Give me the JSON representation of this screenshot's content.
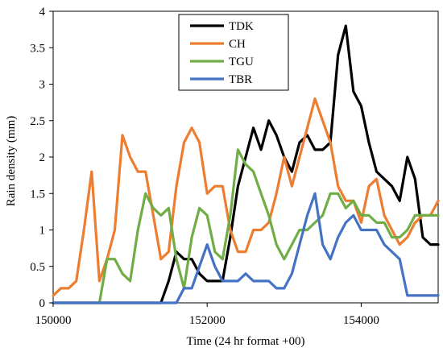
{
  "chart_data": {
    "type": "line",
    "title": "",
    "xlabel": "Time (24 hr format +00)",
    "ylabel": "Rain  density (mm)",
    "xlim": [
      150000,
      155000
    ],
    "ylim": [
      0,
      4
    ],
    "xticks": [
      150000,
      152000,
      154000
    ],
    "xtick_labels": [
      "150000",
      "152000",
      "154000"
    ],
    "yticks": [
      0,
      0.5,
      1,
      1.5,
      2,
      2.5,
      3,
      3.5,
      4
    ],
    "ytick_labels": [
      "0",
      "0.5",
      "1",
      "1.5",
      "2",
      "2.5",
      "3",
      "3.5",
      "4"
    ],
    "grid": false,
    "legend_position": "top-center",
    "series": [
      {
        "name": "TDK",
        "color": "#000000",
        "points": [
          [
            150000,
            0
          ],
          [
            151300,
            0
          ],
          [
            151400,
            0
          ],
          [
            151500,
            0.3
          ],
          [
            151600,
            0.7
          ],
          [
            151700,
            0.6
          ],
          [
            151800,
            0.6
          ],
          [
            151900,
            0.4
          ],
          [
            152000,
            0.3
          ],
          [
            152100,
            0.3
          ],
          [
            152200,
            0.3
          ],
          [
            152300,
            0.9
          ],
          [
            152400,
            1.6
          ],
          [
            152500,
            2
          ],
          [
            152600,
            2.4
          ],
          [
            152700,
            2.1
          ],
          [
            152800,
            2.5
          ],
          [
            152900,
            2.3
          ],
          [
            153000,
            2
          ],
          [
            153100,
            1.8
          ],
          [
            153200,
            2.2
          ],
          [
            153300,
            2.3
          ],
          [
            153400,
            2.1
          ],
          [
            153500,
            2.1
          ],
          [
            153600,
            2.2
          ],
          [
            153700,
            3.4
          ],
          [
            153800,
            3.8
          ],
          [
            153900,
            2.9
          ],
          [
            154000,
            2.7
          ],
          [
            154100,
            2.2
          ],
          [
            154200,
            1.8
          ],
          [
            154300,
            1.7
          ],
          [
            154400,
            1.6
          ],
          [
            154500,
            1.4
          ],
          [
            154600,
            2
          ],
          [
            154700,
            1.7
          ],
          [
            154800,
            0.9
          ],
          [
            154900,
            0.8
          ],
          [
            155000,
            0.8
          ]
        ]
      },
      {
        "name": "CH",
        "color": "#ED7D31",
        "points": [
          [
            150000,
            0.1
          ],
          [
            150100,
            0.2
          ],
          [
            150200,
            0.2
          ],
          [
            150300,
            0.3
          ],
          [
            150400,
            1
          ],
          [
            150500,
            1.8
          ],
          [
            150600,
            0.3
          ],
          [
            150700,
            0.6
          ],
          [
            150800,
            1
          ],
          [
            150900,
            2.3
          ],
          [
            151000,
            2
          ],
          [
            151100,
            1.8
          ],
          [
            151200,
            1.8
          ],
          [
            151300,
            1.2
          ],
          [
            151400,
            0.6
          ],
          [
            151500,
            0.7
          ],
          [
            151600,
            1.6
          ],
          [
            151700,
            2.2
          ],
          [
            151800,
            2.4
          ],
          [
            151900,
            2.2
          ],
          [
            152000,
            1.5
          ],
          [
            152100,
            1.6
          ],
          [
            152200,
            1.6
          ],
          [
            152300,
            1
          ],
          [
            152400,
            0.7
          ],
          [
            152500,
            0.7
          ],
          [
            152600,
            1
          ],
          [
            152700,
            1
          ],
          [
            152800,
            1.1
          ],
          [
            152900,
            1.5
          ],
          [
            153000,
            2
          ],
          [
            153100,
            1.6
          ],
          [
            153200,
            2
          ],
          [
            153300,
            2.4
          ],
          [
            153400,
            2.8
          ],
          [
            153500,
            2.5
          ],
          [
            153600,
            2.2
          ],
          [
            153700,
            1.6
          ],
          [
            153800,
            1.4
          ],
          [
            153900,
            1.4
          ],
          [
            154000,
            1.1
          ],
          [
            154100,
            1.6
          ],
          [
            154200,
            1.7
          ],
          [
            154300,
            1.2
          ],
          [
            154400,
            1
          ],
          [
            154500,
            0.8
          ],
          [
            154600,
            0.9
          ],
          [
            154700,
            1.1
          ],
          [
            154800,
            1.2
          ],
          [
            154900,
            1.2
          ],
          [
            155000,
            1.4
          ]
        ]
      },
      {
        "name": "TGU",
        "color": "#70AD47",
        "points": [
          [
            150600,
            0
          ],
          [
            150700,
            0.6
          ],
          [
            150800,
            0.6
          ],
          [
            150900,
            0.4
          ],
          [
            151000,
            0.3
          ],
          [
            151100,
            1
          ],
          [
            151200,
            1.5
          ],
          [
            151300,
            1.3
          ],
          [
            151400,
            1.2
          ],
          [
            151500,
            1.3
          ],
          [
            151600,
            0.6
          ],
          [
            151700,
            0.2
          ],
          [
            151800,
            0.9
          ],
          [
            151900,
            1.3
          ],
          [
            152000,
            1.2
          ],
          [
            152100,
            0.7
          ],
          [
            152200,
            0.6
          ],
          [
            152300,
            1.2
          ],
          [
            152400,
            2.1
          ],
          [
            152500,
            1.9
          ],
          [
            152600,
            1.8
          ],
          [
            152700,
            1.5
          ],
          [
            152800,
            1.2
          ],
          [
            152900,
            0.8
          ],
          [
            153000,
            0.6
          ],
          [
            153100,
            0.8
          ],
          [
            153200,
            1
          ],
          [
            153300,
            1
          ],
          [
            153400,
            1.1
          ],
          [
            153500,
            1.2
          ],
          [
            153600,
            1.5
          ],
          [
            153700,
            1.5
          ],
          [
            153800,
            1.3
          ],
          [
            153900,
            1.4
          ],
          [
            154000,
            1.2
          ],
          [
            154100,
            1.2
          ],
          [
            154200,
            1.1
          ],
          [
            154300,
            1.1
          ],
          [
            154400,
            0.9
          ],
          [
            154500,
            0.9
          ],
          [
            154600,
            1
          ],
          [
            154700,
            1.2
          ],
          [
            154800,
            1.2
          ],
          [
            154900,
            1.2
          ],
          [
            155000,
            1.2
          ]
        ]
      },
      {
        "name": "TBR",
        "color": "#4472C4",
        "points": [
          [
            150000,
            0
          ],
          [
            151600,
            0
          ],
          [
            151700,
            0.2
          ],
          [
            151800,
            0.2
          ],
          [
            151900,
            0.5
          ],
          [
            152000,
            0.8
          ],
          [
            152100,
            0.5
          ],
          [
            152200,
            0.3
          ],
          [
            152300,
            0.3
          ],
          [
            152400,
            0.3
          ],
          [
            152500,
            0.4
          ],
          [
            152600,
            0.3
          ],
          [
            152700,
            0.3
          ],
          [
            152800,
            0.3
          ],
          [
            152900,
            0.2
          ],
          [
            153000,
            0.2
          ],
          [
            153100,
            0.4
          ],
          [
            153200,
            0.8
          ],
          [
            153300,
            1.2
          ],
          [
            153400,
            1.5
          ],
          [
            153500,
            0.8
          ],
          [
            153600,
            0.6
          ],
          [
            153700,
            0.9
          ],
          [
            153800,
            1.1
          ],
          [
            153900,
            1.2
          ],
          [
            154000,
            1
          ],
          [
            154100,
            1
          ],
          [
            154200,
            1
          ],
          [
            154300,
            0.8
          ],
          [
            154400,
            0.7
          ],
          [
            154500,
            0.6
          ],
          [
            154600,
            0.1
          ],
          [
            154700,
            0.1
          ],
          [
            154800,
            0.1
          ],
          [
            154900,
            0.1
          ],
          [
            155000,
            0.1
          ]
        ]
      }
    ]
  }
}
